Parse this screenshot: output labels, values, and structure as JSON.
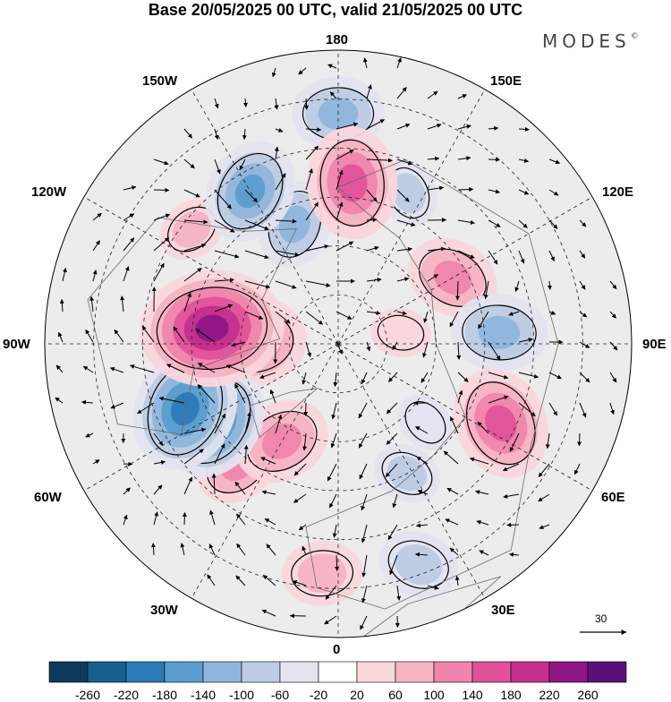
{
  "title": "Base 20/05/2025 00 UTC, valid 21/05/2025 00 UTC",
  "brand": "MODES",
  "brand_mark": "©",
  "longitude_labels": {
    "top": "180",
    "top_left": "150W",
    "top_right": "150E",
    "upper_left": "120W",
    "upper_right": "120E",
    "left": "90W",
    "right": "90E",
    "lower_left": "60W",
    "lower_right": "60E",
    "bottom_left": "30W",
    "bottom_right": "30E",
    "bottom": "0"
  },
  "vector_reference": {
    "label": "30"
  },
  "colorbar": {
    "labels": [
      "-260",
      "-220",
      "-180",
      "-140",
      "-100",
      "-60",
      "-20",
      "20",
      "60",
      "100",
      "140",
      "180",
      "220",
      "260"
    ],
    "colors": [
      "#103a5c",
      "#155f91",
      "#2b7ab8",
      "#5a9ccc",
      "#8fb5dc",
      "#bccbe3",
      "#e3e4ef",
      "#ffffff",
      "#f9d7dc",
      "#f5b3c3",
      "#ef85ac",
      "#e0529b",
      "#c42f8e",
      "#8e1785",
      "#5a1078"
    ]
  },
  "map_style": {
    "ocean_color": "#ececec",
    "coast_color": "#6b6b6b",
    "graticule_color": "#222222",
    "contour_color": "#000000"
  },
  "anomaly_centres": [
    {
      "lon": -97,
      "colat": 26,
      "value": 250
    },
    {
      "lon": -92,
      "colat": 18,
      "value": 170
    },
    {
      "lon": -67,
      "colat": 34,
      "value": -200
    },
    {
      "lon": -58,
      "colat": 30,
      "value": -180
    },
    {
      "lon": -150,
      "colat": 36,
      "value": -150
    },
    {
      "lon": -160,
      "colat": 26,
      "value": -110
    },
    {
      "lon": 175,
      "colat": 33,
      "value": 170
    },
    {
      "lon": 180,
      "colat": 47,
      "value": -120
    },
    {
      "lon": 155,
      "colat": 34,
      "value": -60
    },
    {
      "lon": 120,
      "colat": 27,
      "value": 120
    },
    {
      "lon": 94,
      "colat": 33,
      "value": -130
    },
    {
      "lon": 64,
      "colat": 37,
      "value": 170
    },
    {
      "lon": -30,
      "colat": 23,
      "value": 130
    },
    {
      "lon": -40,
      "colat": 32,
      "value": 110
    },
    {
      "lon": 28,
      "colat": 30,
      "value": -60
    },
    {
      "lon": 20,
      "colat": 48,
      "value": -90
    },
    {
      "lon": -4,
      "colat": 47,
      "value": 90
    },
    {
      "lon": -128,
      "colat": 38,
      "value": 60
    },
    {
      "lon": 100,
      "colat": 13,
      "value": 40
    },
    {
      "lon": 48,
      "colat": 24,
      "value": -40
    }
  ]
}
